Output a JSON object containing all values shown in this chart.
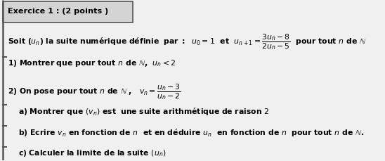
{
  "figsize": [
    5.48,
    2.3
  ],
  "dpi": 100,
  "bg_color": "#f0f0f0",
  "header_box_color": "#d4d4d4",
  "header_edge_color": "#555555",
  "left_bar_color": "#555555",
  "text_color": "#000000",
  "fs": 7.8,
  "title": "Exercice 1 : (2 points )",
  "line1": "Soit $(u_n)$ la suite numérique définie  par :  $u_0 = 1$  et  $u_{n+1} = \\dfrac{3u_n - 8}{2u_n - 5}$  pour tout $n$ de $\\mathbb{N}$",
  "line2": "1) Montrer que pour tout $n$ de $\\mathbb{N}$,  $u_n < 2$",
  "line3": "2) On pose pour tout $n$ de $\\mathbb{N}$ ,   $v_n = \\dfrac{u_n - 3}{u_n - 2}$",
  "line4": "a) Montrer que $(v_n)$ est  une suite arithmétique de raison $2$",
  "line5": "b) Ecrire $v_n$ en fonction de $n$  et en déduire $u_n$  en fonction de $n$  pour tout $n$ de $\\mathbb{N}$.",
  "line6": "c) Calculer la limite de la suite $(u_n)$"
}
